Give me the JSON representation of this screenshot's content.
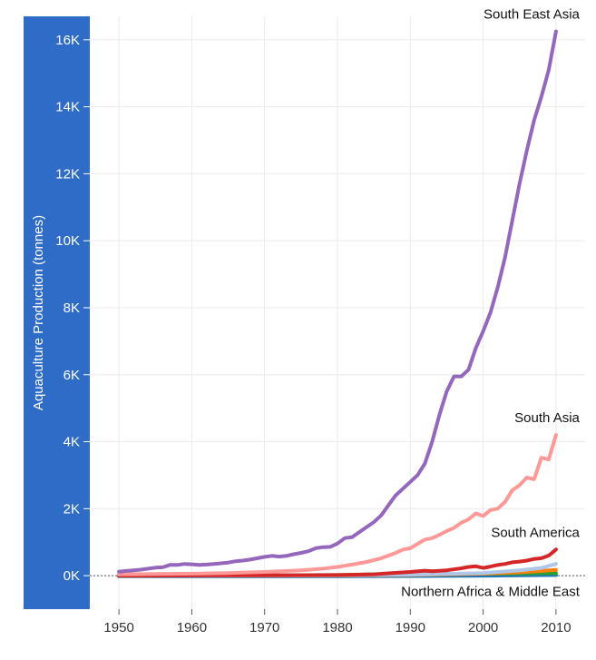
{
  "chart_data": {
    "type": "line",
    "title": "",
    "xlabel": "",
    "ylabel": "Aquaculture Production (tonnes)",
    "xlim": [
      1946,
      2014
    ],
    "ylim": [
      -1000,
      16700
    ],
    "x_ticks": [
      1950,
      1960,
      1970,
      1980,
      1990,
      2000,
      2010
    ],
    "y_ticks": [
      {
        "value": 0,
        "label": "0K"
      },
      {
        "value": 2000,
        "label": "2K"
      },
      {
        "value": 4000,
        "label": "4K"
      },
      {
        "value": 6000,
        "label": "6K"
      },
      {
        "value": 8000,
        "label": "8K"
      },
      {
        "value": 10000,
        "label": "10K"
      },
      {
        "value": 12000,
        "label": "12K"
      },
      {
        "value": 14000,
        "label": "14K"
      },
      {
        "value": 16000,
        "label": "16K"
      }
    ],
    "grid": true,
    "reference_line": {
      "y": 0,
      "style": "dotted"
    },
    "series": [
      {
        "name": "South East Asia",
        "color": "#9467bd",
        "labeled": true,
        "points": [
          [
            1950,
            120
          ],
          [
            1951,
            140
          ],
          [
            1952,
            160
          ],
          [
            1953,
            180
          ],
          [
            1954,
            210
          ],
          [
            1955,
            240
          ],
          [
            1956,
            250
          ],
          [
            1957,
            320
          ],
          [
            1958,
            320
          ],
          [
            1959,
            350
          ],
          [
            1960,
            340
          ],
          [
            1961,
            320
          ],
          [
            1962,
            330
          ],
          [
            1963,
            350
          ],
          [
            1964,
            370
          ],
          [
            1965,
            390
          ],
          [
            1966,
            430
          ],
          [
            1967,
            450
          ],
          [
            1968,
            480
          ],
          [
            1969,
            520
          ],
          [
            1970,
            560
          ],
          [
            1971,
            590
          ],
          [
            1972,
            570
          ],
          [
            1973,
            590
          ],
          [
            1974,
            640
          ],
          [
            1975,
            680
          ],
          [
            1976,
            730
          ],
          [
            1977,
            820
          ],
          [
            1978,
            850
          ],
          [
            1979,
            860
          ],
          [
            1980,
            960
          ],
          [
            1981,
            1120
          ],
          [
            1982,
            1150
          ],
          [
            1983,
            1300
          ],
          [
            1984,
            1450
          ],
          [
            1985,
            1600
          ],
          [
            1986,
            1800
          ],
          [
            1987,
            2100
          ],
          [
            1988,
            2400
          ],
          [
            1989,
            2600
          ],
          [
            1990,
            2800
          ],
          [
            1991,
            3000
          ],
          [
            1992,
            3350
          ],
          [
            1993,
            4000
          ],
          [
            1994,
            4800
          ],
          [
            1995,
            5500
          ],
          [
            1996,
            5950
          ],
          [
            1997,
            5950
          ],
          [
            1998,
            6150
          ],
          [
            1999,
            6800
          ],
          [
            2000,
            7300
          ],
          [
            2001,
            7850
          ],
          [
            2002,
            8600
          ],
          [
            2003,
            9500
          ],
          [
            2004,
            10600
          ],
          [
            2005,
            11700
          ],
          [
            2006,
            12700
          ],
          [
            2007,
            13600
          ],
          [
            2008,
            14300
          ],
          [
            2009,
            15100
          ],
          [
            2010,
            16250
          ]
        ]
      },
      {
        "name": "South Asia",
        "color": "#ff9896",
        "labeled": true,
        "points": [
          [
            1950,
            40
          ],
          [
            1955,
            50
          ],
          [
            1960,
            60
          ],
          [
            1965,
            80
          ],
          [
            1970,
            110
          ],
          [
            1975,
            160
          ],
          [
            1978,
            210
          ],
          [
            1980,
            260
          ],
          [
            1982,
            330
          ],
          [
            1984,
            410
          ],
          [
            1986,
            520
          ],
          [
            1987,
            600
          ],
          [
            1988,
            680
          ],
          [
            1989,
            780
          ],
          [
            1990,
            820
          ],
          [
            1991,
            950
          ],
          [
            1992,
            1080
          ],
          [
            1993,
            1120
          ],
          [
            1994,
            1220
          ],
          [
            1995,
            1330
          ],
          [
            1996,
            1430
          ],
          [
            1997,
            1580
          ],
          [
            1998,
            1680
          ],
          [
            1999,
            1860
          ],
          [
            2000,
            1780
          ],
          [
            2001,
            1960
          ],
          [
            2002,
            2000
          ],
          [
            2003,
            2200
          ],
          [
            2004,
            2550
          ],
          [
            2005,
            2700
          ],
          [
            2006,
            2930
          ],
          [
            2007,
            2880
          ],
          [
            2008,
            3520
          ],
          [
            2009,
            3470
          ],
          [
            2010,
            4200
          ]
        ]
      },
      {
        "name": "South America",
        "color": "#d62728",
        "labeled": true,
        "points": [
          [
            1950,
            0
          ],
          [
            1960,
            5
          ],
          [
            1970,
            10
          ],
          [
            1980,
            20
          ],
          [
            1985,
            40
          ],
          [
            1987,
            70
          ],
          [
            1990,
            110
          ],
          [
            1992,
            150
          ],
          [
            1993,
            130
          ],
          [
            1995,
            160
          ],
          [
            1997,
            220
          ],
          [
            1998,
            260
          ],
          [
            1999,
            280
          ],
          [
            2000,
            230
          ],
          [
            2001,
            270
          ],
          [
            2002,
            320
          ],
          [
            2003,
            350
          ],
          [
            2004,
            400
          ],
          [
            2005,
            420
          ],
          [
            2006,
            450
          ],
          [
            2007,
            500
          ],
          [
            2008,
            520
          ],
          [
            2009,
            600
          ],
          [
            2010,
            780
          ]
        ]
      },
      {
        "name": "",
        "color": "#aec7e8",
        "labeled": false,
        "points": [
          [
            1950,
            0
          ],
          [
            1980,
            10
          ],
          [
            1990,
            30
          ],
          [
            2000,
            80
          ],
          [
            2005,
            160
          ],
          [
            2008,
            230
          ],
          [
            2010,
            350
          ]
        ]
      },
      {
        "name": "",
        "color": "#ff7f0e",
        "labeled": false,
        "points": [
          [
            1950,
            0
          ],
          [
            1980,
            5
          ],
          [
            1990,
            20
          ],
          [
            2000,
            60
          ],
          [
            2005,
            100
          ],
          [
            2008,
            140
          ],
          [
            2010,
            170
          ]
        ]
      },
      {
        "name": "",
        "color": "#2ca02c",
        "labeled": false,
        "points": [
          [
            1950,
            0
          ],
          [
            1980,
            20
          ],
          [
            1985,
            40
          ],
          [
            1990,
            50
          ],
          [
            2000,
            60
          ],
          [
            2010,
            80
          ]
        ]
      },
      {
        "name": "Northern Africa & Middle East",
        "color": "#1f77b4",
        "labeled": true,
        "points": [
          [
            1950,
            -20
          ],
          [
            1960,
            -20
          ],
          [
            1970,
            -20
          ],
          [
            1980,
            -20
          ],
          [
            1990,
            -10
          ],
          [
            2000,
            0
          ],
          [
            2005,
            10
          ],
          [
            2010,
            20
          ]
        ]
      }
    ]
  }
}
